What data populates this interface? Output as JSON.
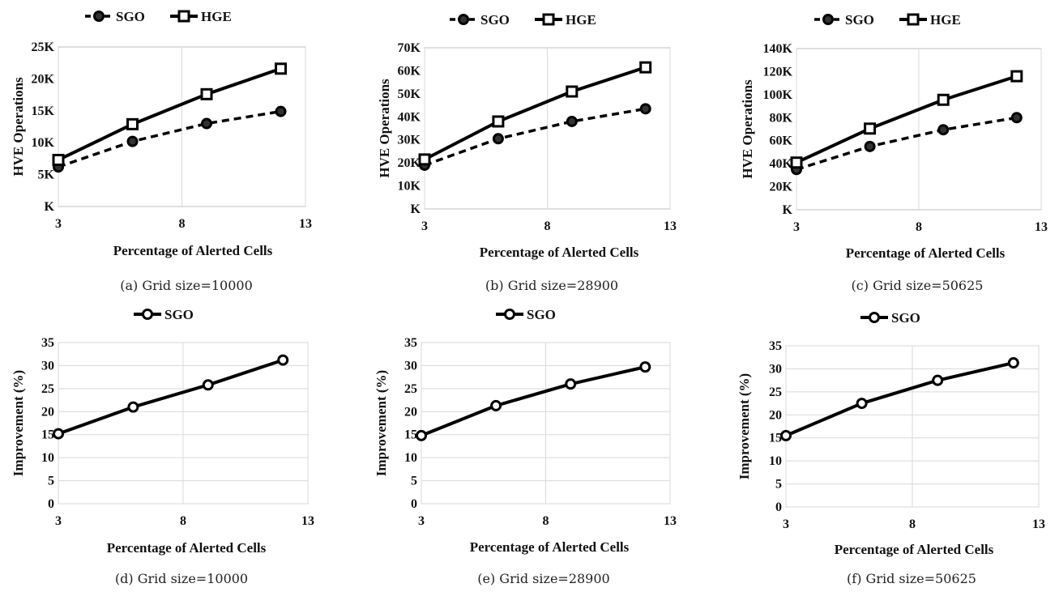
{
  "figure": {
    "colors": {
      "line": "#000000",
      "grid": "#d9d9d9",
      "border": "#bfbfbf",
      "marker_fill": "#ffffff",
      "filled_marker": "#333333"
    }
  },
  "chart_data": [
    {
      "type": "line",
      "caption": "(a) Grid size=10000",
      "xlabel": "Percentage of Alerted Cells",
      "ylabel": "HVE Operations",
      "xlim": [
        3,
        13
      ],
      "xticks": [
        3,
        8,
        13
      ],
      "ylim": [
        0,
        25000
      ],
      "yticks": [
        0,
        5000,
        10000,
        15000,
        20000,
        25000
      ],
      "ytick_labels": [
        "K",
        "5K",
        "10K",
        "15K",
        "20K",
        "25K"
      ],
      "grid": "vertical",
      "legend_position": "top",
      "x": [
        3,
        6,
        9,
        12
      ],
      "series": [
        {
          "name": "SGO",
          "values": [
            6200,
            10200,
            13000,
            14900
          ],
          "style": "dashed",
          "marker": "circle"
        },
        {
          "name": "HGE",
          "values": [
            7300,
            12900,
            17600,
            21600
          ],
          "style": "solid",
          "marker": "square"
        }
      ]
    },
    {
      "type": "line",
      "caption": "(b) Grid size=28900",
      "xlabel": "Percentage of Alerted Cells",
      "ylabel": "HVE Operations",
      "xlim": [
        3,
        13
      ],
      "xticks": [
        3,
        8,
        13
      ],
      "ylim": [
        0,
        70000
      ],
      "yticks": [
        0,
        10000,
        20000,
        30000,
        40000,
        50000,
        60000,
        70000
      ],
      "ytick_labels": [
        "K",
        "10K",
        "20K",
        "30K",
        "40K",
        "50K",
        "60K",
        "70K"
      ],
      "grid": "vertical",
      "legend_position": "top",
      "x": [
        3,
        6,
        9,
        12
      ],
      "series": [
        {
          "name": "SGO",
          "values": [
            19000,
            30500,
            38000,
            43500
          ],
          "style": "dashed",
          "marker": "circle"
        },
        {
          "name": "HGE",
          "values": [
            21500,
            38000,
            51000,
            61500
          ],
          "style": "solid",
          "marker": "square"
        }
      ]
    },
    {
      "type": "line",
      "caption": "(c) Grid size=50625",
      "xlabel": "Percentage of Alerted Cells",
      "ylabel": "HVE Operations",
      "xlim": [
        3,
        13
      ],
      "xticks": [
        3,
        8,
        13
      ],
      "ylim": [
        0,
        140000
      ],
      "yticks": [
        0,
        20000,
        40000,
        60000,
        80000,
        100000,
        120000,
        140000
      ],
      "ytick_labels": [
        "K",
        "20K",
        "40K",
        "60K",
        "80K",
        "100K",
        "120K",
        "140K"
      ],
      "grid": "vertical",
      "legend_position": "top",
      "x": [
        3,
        6,
        9,
        12
      ],
      "series": [
        {
          "name": "SGO",
          "values": [
            35000,
            55000,
            69500,
            80000
          ],
          "style": "dashed",
          "marker": "circle"
        },
        {
          "name": "HGE",
          "values": [
            41000,
            70500,
            95500,
            116000
          ],
          "style": "solid",
          "marker": "square"
        }
      ]
    },
    {
      "type": "line",
      "caption": "(d) Grid size=10000",
      "xlabel": "Percentage of Alerted Cells",
      "ylabel": "Improvement (%)",
      "xlim": [
        3,
        13
      ],
      "xticks": [
        3,
        8,
        13
      ],
      "ylim": [
        0,
        35
      ],
      "yticks": [
        0,
        5,
        10,
        15,
        20,
        25,
        30,
        35
      ],
      "ytick_labels": [
        "0",
        "5",
        "10",
        "15",
        "20",
        "25",
        "30",
        "35"
      ],
      "grid": "both",
      "legend_position": "top",
      "x": [
        3,
        6,
        9,
        12
      ],
      "series": [
        {
          "name": "SGO",
          "values": [
            15.2,
            21.0,
            25.8,
            31.2
          ],
          "style": "solid",
          "marker": "circle"
        }
      ]
    },
    {
      "type": "line",
      "caption": "(e) Grid size=28900",
      "xlabel": "Percentage of Alerted Cells",
      "ylabel": "Improvement (%)",
      "xlim": [
        3,
        13
      ],
      "xticks": [
        3,
        8,
        13
      ],
      "ylim": [
        0,
        35
      ],
      "yticks": [
        0,
        5,
        10,
        15,
        20,
        25,
        30,
        35
      ],
      "ytick_labels": [
        "0",
        "5",
        "10",
        "15",
        "20",
        "25",
        "30",
        "35"
      ],
      "grid": "both",
      "legend_position": "top",
      "x": [
        3,
        6,
        9,
        12
      ],
      "series": [
        {
          "name": "SGO",
          "values": [
            14.8,
            21.3,
            26.0,
            29.7
          ],
          "style": "solid",
          "marker": "circle"
        }
      ]
    },
    {
      "type": "line",
      "caption": "(f) Grid size=50625",
      "xlabel": "Percentage of Alerted Cells",
      "ylabel": "Improvement (%)",
      "xlim": [
        3,
        13
      ],
      "xticks": [
        3,
        8,
        13
      ],
      "ylim": [
        0,
        35
      ],
      "yticks": [
        0,
        5,
        10,
        15,
        20,
        25,
        30,
        35
      ],
      "ytick_labels": [
        "0",
        "5",
        "10",
        "15",
        "20",
        "25",
        "30",
        "35"
      ],
      "grid": "both",
      "legend_position": "top",
      "x": [
        3,
        6,
        9,
        12
      ],
      "series": [
        {
          "name": "SGO",
          "values": [
            15.5,
            22.5,
            27.5,
            31.3
          ],
          "style": "solid",
          "marker": "circle"
        }
      ]
    }
  ]
}
